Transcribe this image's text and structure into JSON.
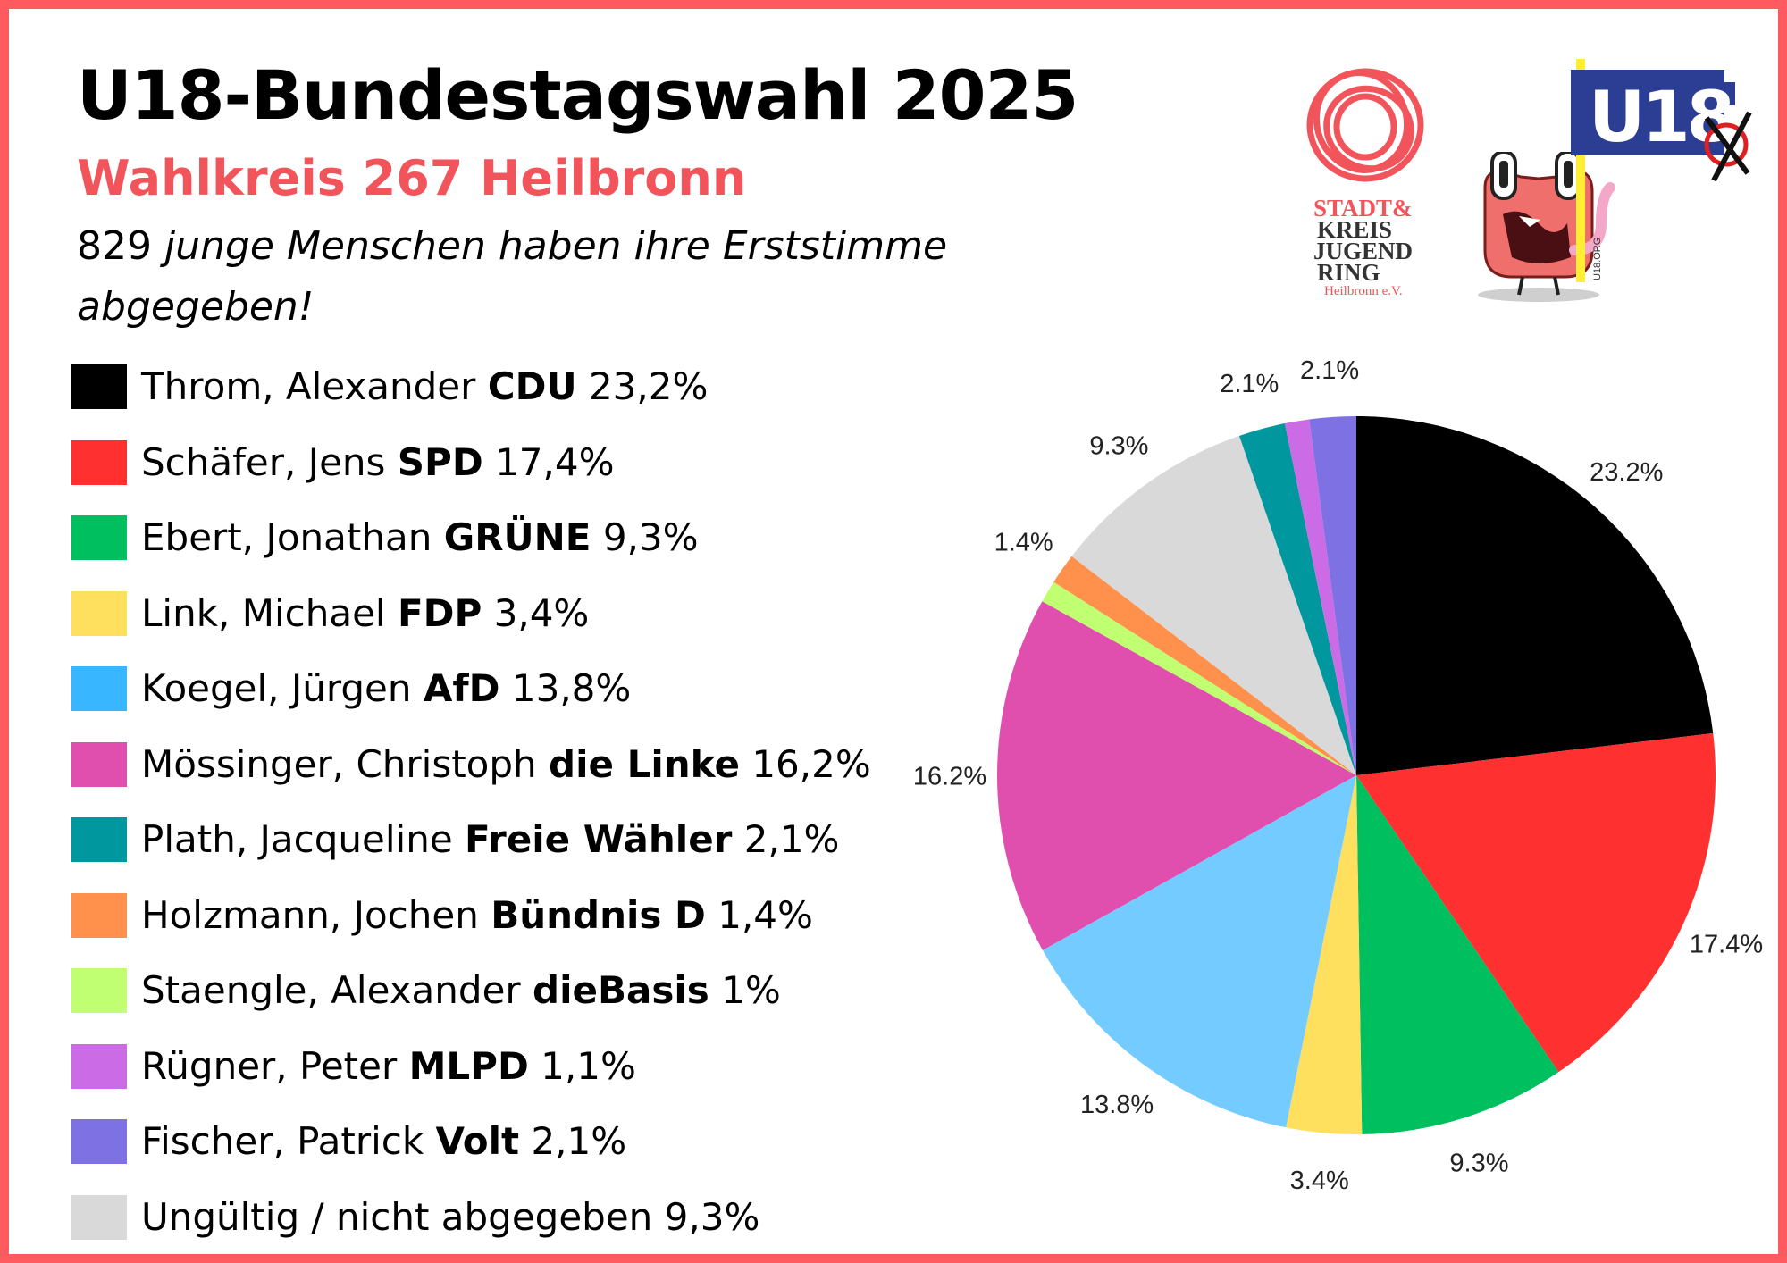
{
  "header": {
    "title": "U18-Bundestagswahl 2025",
    "subtitle": "Wahlkreis 267 Heilbronn",
    "intro_number": "829",
    "intro_text": "junge Menschen haben ihre Erststimme abgegeben!"
  },
  "logos": {
    "sjr": {
      "lines": [
        "STADT&",
        "KREIS",
        "JUGEND",
        "RING"
      ],
      "place": "Heilbronn e.V.",
      "color": "#f2545b"
    },
    "u18": {
      "text": "U18",
      "url": "U18.ORG"
    }
  },
  "legend": [
    {
      "name": "Throm, Alexander",
      "party": "CDU",
      "share": "23,2%",
      "color": "#000000"
    },
    {
      "name": "Schäfer, Jens",
      "party": "SPD",
      "share": "17,4%",
      "color": "#ff3030"
    },
    {
      "name": "Ebert, Jonathan",
      "party": "GRÜNE",
      "share": "9,3%",
      "color": "#00bf5f"
    },
    {
      "name": "Link, Michael",
      "party": "FDP",
      "share": "3,4%",
      "color": "#ffdf5e"
    },
    {
      "name": "Koegel, Jürgen",
      "party": "AfD",
      "share": "13,8%",
      "color": "#38b6ff"
    },
    {
      "name": "Mössinger, Christoph",
      "party": "die Linke",
      "share": "16,2%",
      "color": "#e04fae"
    },
    {
      "name": "Plath, Jacqueline",
      "party": "Freie Wähler",
      "share": "2,1%",
      "color": "#00989e"
    },
    {
      "name": "Holzmann, Jochen",
      "party": "Bündnis D",
      "share": "1,4%",
      "color": "#ff914d"
    },
    {
      "name": "Staengle, Alexander",
      "party": "dieBasis",
      "share": "1%",
      "color": "#c1ff72"
    },
    {
      "name": "Rügner, Peter",
      "party": "MLPD",
      "share": "1,1%",
      "color": "#cb6ce6"
    },
    {
      "name": "Fischer, Patrick",
      "party": "Volt",
      "share": "2,1%",
      "color": "#7e71e3"
    },
    {
      "name": "Ungültig / nicht abgegeben",
      "party": "",
      "share": "9,3%",
      "color": "#d9d9d9"
    }
  ],
  "chart_data": {
    "type": "pie",
    "start": "12 o'clock, clockwise",
    "slices": [
      {
        "party": "CDU",
        "value": 23.2,
        "label": "23.2%",
        "color": "#000000"
      },
      {
        "party": "SPD",
        "value": 17.4,
        "label": "17.4%",
        "color": "#ff3030"
      },
      {
        "party": "GRÜNE",
        "value": 9.3,
        "label": "9.3%",
        "color": "#00bf5f"
      },
      {
        "party": "FDP",
        "value": 3.4,
        "label": "3.4%",
        "color": "#ffdf5e"
      },
      {
        "party": "AfD",
        "value": 13.8,
        "label": "13.8%",
        "color": "#73cbff"
      },
      {
        "party": "die Linke",
        "value": 16.2,
        "label": "16.2%",
        "color": "#e04fae"
      },
      {
        "party": "dieBasis",
        "value": 1.0,
        "label": "",
        "color": "#c1ff72"
      },
      {
        "party": "Bündnis D",
        "value": 1.4,
        "label": "1.4%",
        "color": "#ff914d"
      },
      {
        "party": "Ungültig / nicht abgegeben",
        "value": 9.3,
        "label": "9.3%",
        "color": "#d9d9d9"
      },
      {
        "party": "Freie Wähler",
        "value": 2.1,
        "label": "2.1%",
        "color": "#00989e"
      },
      {
        "party": "MLPD",
        "value": 1.1,
        "label": "",
        "color": "#cb6ce6"
      },
      {
        "party": "Volt",
        "value": 2.1,
        "label": "2.1%",
        "color": "#7e71e3"
      }
    ]
  }
}
